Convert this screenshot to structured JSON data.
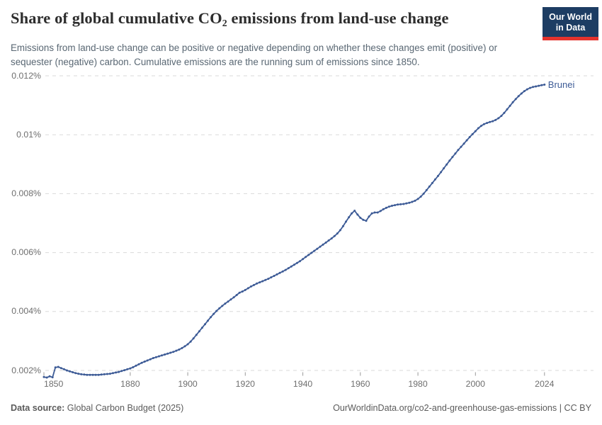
{
  "header": {
    "title_pre": "Share of global cumulative CO",
    "title_sub": "2",
    "title_post": " emissions from land-use change",
    "subtitle": "Emissions from land-use change can be positive or negative depending on whether these changes emit (positive) or sequester (negative) carbon. Cumulative emissions are the running sum of emissions since 1850.",
    "logo": {
      "line1": "Our World",
      "line2": "in Data",
      "bg_color": "#1d3d63",
      "accent_color": "#e5332d"
    }
  },
  "footer": {
    "datasource_label": "Data source:",
    "datasource_value": " Global Carbon Budget (2025)",
    "link_text": "OurWorldinData.org/co2-and-greenhouse-gas-emissions | CC BY"
  },
  "chart_data": {
    "type": "line",
    "title": "Share of global cumulative CO2 emissions from land-use change",
    "grid": "horizontal-dashed",
    "legend_position": "end-of-line-label",
    "x_axis": {
      "min": 1850,
      "max": 2024,
      "ticks": [
        "1850",
        "1880",
        "1900",
        "1920",
        "1940",
        "1960",
        "1980",
        "2000",
        "2024"
      ],
      "tick_values": [
        1850,
        1880,
        1900,
        1920,
        1940,
        1960,
        1980,
        2000,
        2024
      ]
    },
    "y_axis": {
      "min": 0.002,
      "max": 0.012,
      "unit": "%",
      "ticks": [
        "0.002%",
        "0.004%",
        "0.006%",
        "0.008%",
        "0.01%",
        "0.012%"
      ],
      "tick_values": [
        0.002,
        0.004,
        0.006,
        0.008,
        0.01,
        0.012
      ]
    },
    "series": [
      {
        "name": "Brunei",
        "color": "#3d5b96",
        "x_start": 1850,
        "x_end": 2024,
        "x_step": 1,
        "unit": "% of global cumulative CO2 emissions",
        "values": [
          0.00178,
          0.00176,
          0.0018,
          0.00177,
          0.0021,
          0.00212,
          0.00208,
          0.00204,
          0.002,
          0.00197,
          0.00194,
          0.00191,
          0.00189,
          0.00187,
          0.00186,
          0.00185,
          0.00185,
          0.00185,
          0.00185,
          0.00185,
          0.00186,
          0.00187,
          0.00188,
          0.00189,
          0.00191,
          0.00193,
          0.00195,
          0.00198,
          0.00201,
          0.00204,
          0.00207,
          0.00211,
          0.00216,
          0.00221,
          0.00226,
          0.0023,
          0.00234,
          0.00238,
          0.00242,
          0.00245,
          0.00248,
          0.00251,
          0.00254,
          0.00257,
          0.0026,
          0.00263,
          0.00267,
          0.00271,
          0.00276,
          0.00282,
          0.00289,
          0.00298,
          0.00309,
          0.00321,
          0.00333,
          0.00345,
          0.00357,
          0.00369,
          0.00381,
          0.00392,
          0.00402,
          0.00411,
          0.00419,
          0.00427,
          0.00434,
          0.00441,
          0.00448,
          0.00456,
          0.00464,
          0.00468,
          0.00473,
          0.00479,
          0.00485,
          0.0049,
          0.00495,
          0.00499,
          0.00503,
          0.00507,
          0.00511,
          0.00516,
          0.00521,
          0.00526,
          0.00531,
          0.00536,
          0.00541,
          0.00547,
          0.00553,
          0.00559,
          0.00565,
          0.00571,
          0.00578,
          0.00585,
          0.00592,
          0.00599,
          0.00606,
          0.00613,
          0.0062,
          0.00627,
          0.00634,
          0.00641,
          0.00648,
          0.00656,
          0.00665,
          0.00676,
          0.0069,
          0.00705,
          0.0072,
          0.00733,
          0.00742,
          0.00729,
          0.00718,
          0.00711,
          0.00708,
          0.00722,
          0.00733,
          0.00736,
          0.00736,
          0.00741,
          0.00747,
          0.00752,
          0.00756,
          0.00759,
          0.00761,
          0.00763,
          0.00764,
          0.00765,
          0.00767,
          0.00769,
          0.00772,
          0.00776,
          0.00782,
          0.0079,
          0.008,
          0.00812,
          0.00824,
          0.00836,
          0.00848,
          0.0086,
          0.00873,
          0.00886,
          0.00899,
          0.00912,
          0.00924,
          0.00936,
          0.00948,
          0.00959,
          0.0097,
          0.00981,
          0.00992,
          0.01002,
          0.01012,
          0.01022,
          0.0103,
          0.01036,
          0.0104,
          0.01043,
          0.01046,
          0.0105,
          0.01056,
          0.01064,
          0.01074,
          0.01086,
          0.01098,
          0.0111,
          0.01121,
          0.01131,
          0.0114,
          0.01148,
          0.01154,
          0.01159,
          0.01162,
          0.01164,
          0.01166,
          0.01168,
          0.0117
        ]
      }
    ]
  }
}
